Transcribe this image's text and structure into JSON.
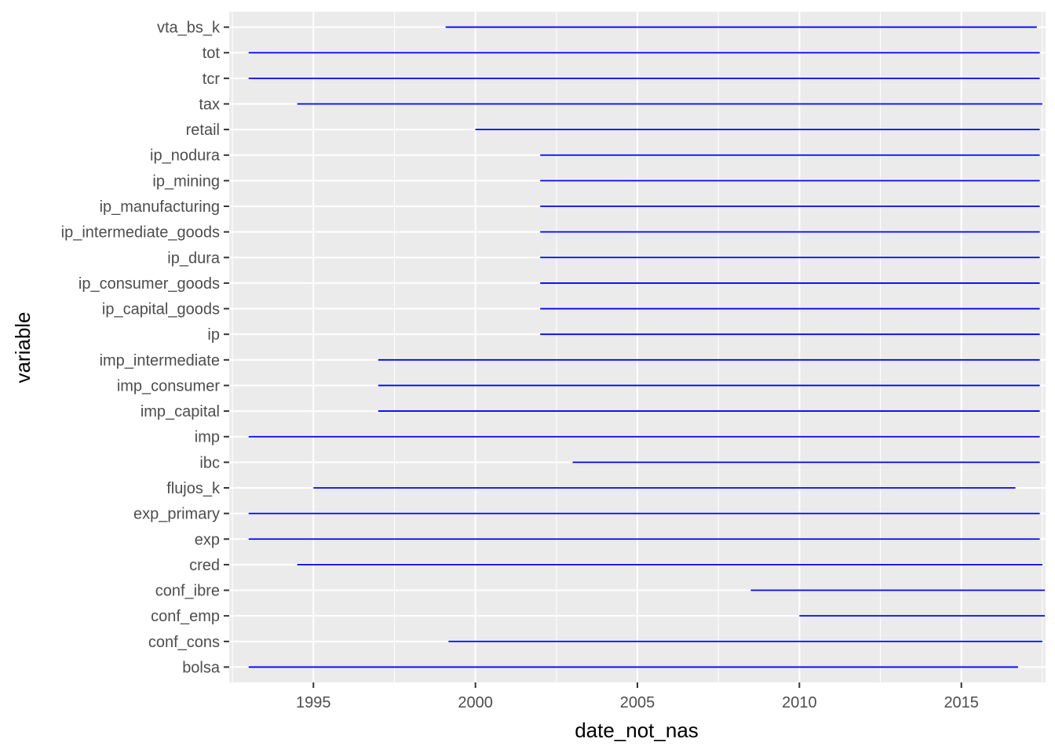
{
  "chart_data": {
    "type": "line",
    "subtype": "segment-range",
    "title": "",
    "xlabel": "date_not_nas",
    "ylabel": "variable",
    "xlim": [
      1992.4,
      2017.6
    ],
    "x_ticks": [
      1995,
      2000,
      2005,
      2010,
      2015
    ],
    "x_tick_labels": [
      "1995",
      "2000",
      "2005",
      "2010",
      "2015"
    ],
    "grid": true,
    "legend": "none",
    "colors": {
      "segment": "#0000FF",
      "panel_background": "#EBEBEB",
      "grid_major": "#FFFFFF",
      "tick_text": "#4D4D4D",
      "tick_mark": "#333333",
      "axis_title": "#000000"
    },
    "categories": [
      "bolsa",
      "conf_cons",
      "conf_emp",
      "conf_ibre",
      "cred",
      "exp",
      "exp_primary",
      "flujos_k",
      "ibc",
      "imp",
      "imp_capital",
      "imp_consumer",
      "imp_intermediate",
      "ip",
      "ip_capital_goods",
      "ip_consumer_goods",
      "ip_dura",
      "ip_intermediate_goods",
      "ip_manufacturing",
      "ip_mining",
      "ip_nodura",
      "retail",
      "tax",
      "tcr",
      "tot",
      "vta_bs_k"
    ],
    "segments": [
      {
        "variable": "bolsa",
        "start": 1993.0,
        "end": 2016.75
      },
      {
        "variable": "conf_cons",
        "start": 1999.17,
        "end": 2017.5
      },
      {
        "variable": "conf_emp",
        "start": 2010.0,
        "end": 2017.58
      },
      {
        "variable": "conf_ibre",
        "start": 2008.5,
        "end": 2017.58
      },
      {
        "variable": "cred",
        "start": 1994.5,
        "end": 2017.5
      },
      {
        "variable": "exp",
        "start": 1993.0,
        "end": 2017.42
      },
      {
        "variable": "exp_primary",
        "start": 1993.0,
        "end": 2017.42
      },
      {
        "variable": "flujos_k",
        "start": 1995.0,
        "end": 2016.67
      },
      {
        "variable": "ibc",
        "start": 2003.0,
        "end": 2017.42
      },
      {
        "variable": "imp",
        "start": 1993.0,
        "end": 2017.42
      },
      {
        "variable": "imp_capital",
        "start": 1997.0,
        "end": 2017.42
      },
      {
        "variable": "imp_consumer",
        "start": 1997.0,
        "end": 2017.42
      },
      {
        "variable": "imp_intermediate",
        "start": 1997.0,
        "end": 2017.42
      },
      {
        "variable": "ip",
        "start": 2002.0,
        "end": 2017.42
      },
      {
        "variable": "ip_capital_goods",
        "start": 2002.0,
        "end": 2017.42
      },
      {
        "variable": "ip_consumer_goods",
        "start": 2002.0,
        "end": 2017.42
      },
      {
        "variable": "ip_dura",
        "start": 2002.0,
        "end": 2017.42
      },
      {
        "variable": "ip_intermediate_goods",
        "start": 2002.0,
        "end": 2017.42
      },
      {
        "variable": "ip_manufacturing",
        "start": 2002.0,
        "end": 2017.42
      },
      {
        "variable": "ip_mining",
        "start": 2002.0,
        "end": 2017.42
      },
      {
        "variable": "ip_nodura",
        "start": 2002.0,
        "end": 2017.42
      },
      {
        "variable": "retail",
        "start": 2000.0,
        "end": 2017.42
      },
      {
        "variable": "tax",
        "start": 1994.5,
        "end": 2017.5
      },
      {
        "variable": "tcr",
        "start": 1993.0,
        "end": 2017.42
      },
      {
        "variable": "tot",
        "start": 1993.0,
        "end": 2017.42
      },
      {
        "variable": "vta_bs_k",
        "start": 1999.08,
        "end": 2017.33
      }
    ]
  }
}
